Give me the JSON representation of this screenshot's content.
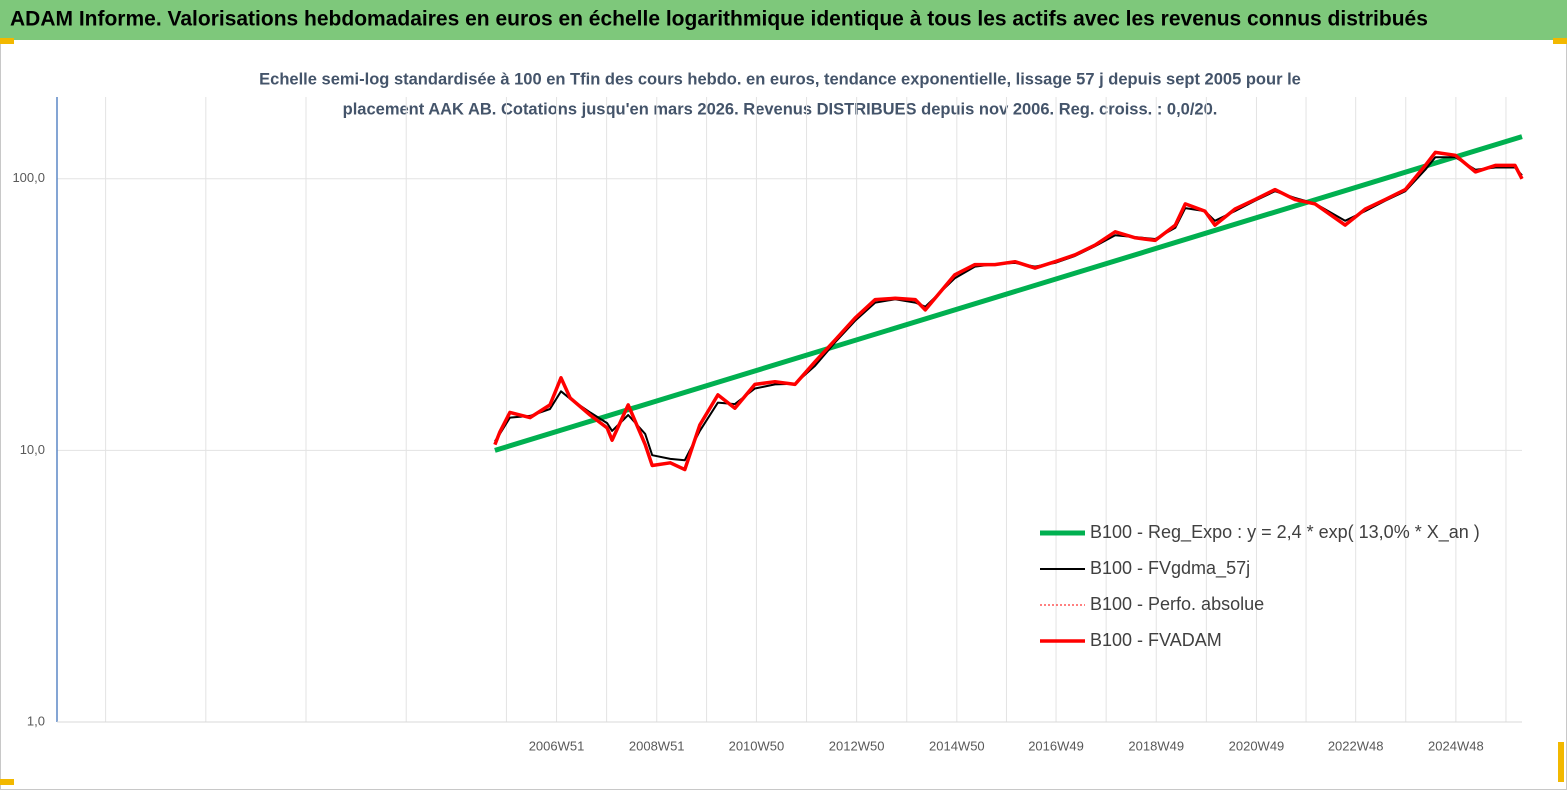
{
  "chart_data": {
    "type": "line",
    "title": "ADAM Informe. Valorisations hebdomadaires en euros en échelle logarithmique identique à tous les actifs avec les revenus connus distribués",
    "subtitle": [
      "Echelle semi-log standardisée à 100 en Tfin des cours hebdo. en euros, tendance exponentielle, lissage 57 j depuis sept 2005  pour le",
      "placement AAK AB. Cotations jusqu'en mars 2026. Revenus DISTRIBUES depuis nov 2006. Reg. croiss. : 0,0/20."
    ],
    "log_scale": true,
    "grid": true,
    "legend": "right",
    "xlim": [
      1997.0,
      2026.24
    ],
    "ylim": [
      1,
      200
    ],
    "yticks": [
      {
        "value": 1,
        "label": "1,0"
      },
      {
        "value": 10,
        "label": "10,0"
      },
      {
        "value": 100,
        "label": "100,0"
      }
    ],
    "xticks": [
      {
        "value": 2006.97,
        "label": "2006W51"
      },
      {
        "value": 2008.97,
        "label": "2008W51"
      },
      {
        "value": 2010.96,
        "label": "2010W50"
      },
      {
        "value": 2012.96,
        "label": "2012W50"
      },
      {
        "value": 2014.96,
        "label": "2014W50"
      },
      {
        "value": 2016.94,
        "label": "2016W49"
      },
      {
        "value": 2018.94,
        "label": "2018W49"
      },
      {
        "value": 2020.94,
        "label": "2020W49"
      },
      {
        "value": 2022.92,
        "label": "2022W48"
      },
      {
        "value": 2024.92,
        "label": "2024W48"
      }
    ],
    "x": [
      2005.74,
      2005.84,
      2006.04,
      2006.44,
      2006.84,
      2007.06,
      2007.24,
      2007.64,
      2007.98,
      2008.08,
      2008.4,
      2008.74,
      2008.88,
      2009.24,
      2009.53,
      2009.83,
      2010.19,
      2010.53,
      2010.93,
      2011.33,
      2011.73,
      2012.13,
      2012.53,
      2012.93,
      2013.33,
      2013.73,
      2014.13,
      2014.33,
      2014.92,
      2015.32,
      2015.72,
      2016.12,
      2016.52,
      2016.92,
      2017.32,
      2017.72,
      2018.12,
      2018.52,
      2018.92,
      2019.32,
      2019.52,
      2019.91,
      2020.11,
      2020.51,
      2020.91,
      2021.31,
      2021.71,
      2022.11,
      2022.71,
      2023.11,
      2023.51,
      2023.91,
      2024.31,
      2024.51,
      2024.91,
      2025.31,
      2025.71,
      2026.1,
      2026.24
    ],
    "series": [
      {
        "name": "B100 - Reg_Expo : y = 2,4 * exp( 13,0% *  X_an )",
        "color": "#00b050",
        "width": 5,
        "x": [
          2005.74,
          2026.24
        ],
        "values": [
          10,
          143
        ]
      },
      {
        "name": "B100 - FVgdma_57j",
        "color": "#000000",
        "width": 2,
        "values": [
          10.8,
          11.5,
          13.2,
          13.4,
          14.2,
          16.5,
          15.5,
          13.8,
          12.6,
          11.8,
          13.5,
          11.5,
          9.6,
          9.3,
          9.2,
          11.8,
          15.0,
          14.8,
          16.9,
          17.5,
          17.6,
          20.5,
          25.0,
          30.0,
          35.0,
          36.0,
          35.0,
          33.8,
          43.0,
          47.5,
          48.5,
          49.0,
          47.5,
          49.0,
          52.0,
          56.5,
          62.0,
          61.0,
          60.0,
          66.0,
          78.0,
          76.0,
          70.0,
          76.0,
          83.0,
          90.0,
          85.0,
          81.0,
          70.0,
          76.0,
          83.0,
          90.0,
          108,
          120,
          120,
          108,
          110,
          110,
          103
        ]
      },
      {
        "name": "B100 - Perfo. absolue",
        "color": "#ff0000",
        "width": 1,
        "dashed": true,
        "values": [
          10.5,
          11.7,
          13.8,
          13.2,
          14.7,
          18.5,
          15.6,
          13.5,
          12.1,
          10.9,
          14.7,
          10.5,
          8.8,
          9.0,
          8.5,
          12.4,
          16.0,
          14.3,
          17.5,
          17.9,
          17.5,
          21.2,
          25.5,
          30.7,
          35.9,
          36.3,
          35.9,
          32.9,
          44.3,
          48.3,
          48.3,
          49.5,
          46.9,
          49.5,
          52.5,
          57,
          63.8,
          60.6,
          59.3,
          67.5,
          80.8,
          76,
          67.5,
          77.3,
          83.8,
          91.2,
          83.8,
          80.8,
          67.5,
          77.3,
          83.8,
          91.2,
          112,
          125,
          122,
          106,
          112,
          112,
          100
        ]
      },
      {
        "name": "B100 - FVADAM",
        "color": "#ff0000",
        "width": 3.5,
        "values": [
          10.5,
          11.7,
          13.8,
          13.2,
          14.7,
          18.5,
          15.6,
          13.5,
          12.1,
          10.9,
          14.7,
          10.5,
          8.8,
          9.0,
          8.5,
          12.4,
          16.0,
          14.3,
          17.5,
          17.9,
          17.5,
          21.2,
          25.5,
          30.7,
          35.9,
          36.3,
          35.9,
          32.9,
          44.3,
          48.3,
          48.3,
          49.5,
          46.9,
          49.5,
          52.5,
          57,
          63.8,
          60.6,
          59.3,
          67.5,
          80.8,
          76,
          67.5,
          77.3,
          83.8,
          91.2,
          83.8,
          80.8,
          67.5,
          77.3,
          83.8,
          91.2,
          112,
          125,
          122,
          106,
          112,
          112,
          100
        ]
      }
    ]
  }
}
